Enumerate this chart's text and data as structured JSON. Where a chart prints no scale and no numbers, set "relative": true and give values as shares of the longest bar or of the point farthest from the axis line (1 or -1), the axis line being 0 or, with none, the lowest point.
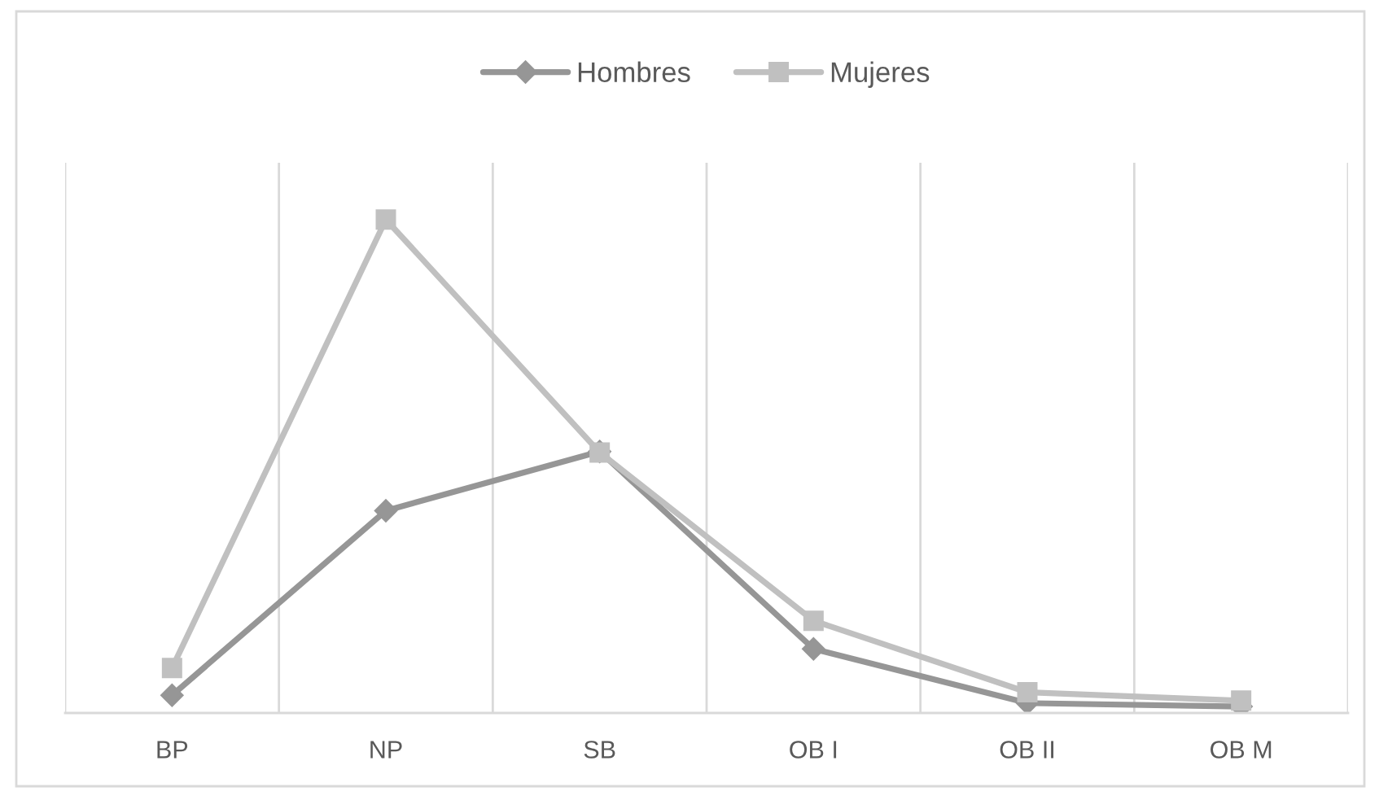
{
  "chart_data": {
    "type": "line",
    "relative": true,
    "categories": [
      "BP",
      "NP",
      "SB",
      "OB I",
      "OB II",
      "OB M"
    ],
    "series": [
      {
        "name": "Hombres",
        "color": "#969696",
        "marker": "diamond",
        "values": [
          0.036,
          0.41,
          0.53,
          0.13,
          0.02,
          0.013
        ]
      },
      {
        "name": "Mujeres",
        "color": "#c0c0c0",
        "marker": "square",
        "values": [
          0.091,
          1,
          0.528,
          0.187,
          0.042,
          0.025
        ]
      }
    ],
    "grid": "x",
    "legend": "top",
    "line_style": "solid"
  }
}
